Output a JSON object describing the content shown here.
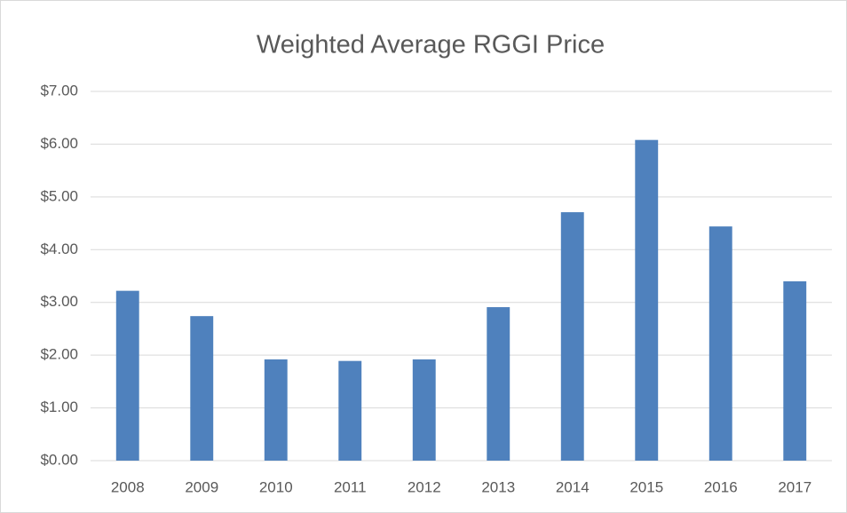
{
  "chart_data": {
    "type": "bar",
    "title": "Weighted Average RGGI Price",
    "categories": [
      "2008",
      "2009",
      "2010",
      "2011",
      "2012",
      "2013",
      "2014",
      "2015",
      "2016",
      "2017"
    ],
    "values": [
      3.22,
      2.74,
      1.92,
      1.89,
      1.92,
      2.91,
      4.71,
      6.08,
      4.44,
      3.4
    ],
    "color": "#4f81bd",
    "ylim": [
      0,
      7
    ],
    "yticks": [
      {
        "value": 0,
        "label": "$0.00"
      },
      {
        "value": 1,
        "label": "$1.00"
      },
      {
        "value": 2,
        "label": "$2.00"
      },
      {
        "value": 3,
        "label": "$3.00"
      },
      {
        "value": 4,
        "label": "$4.00"
      },
      {
        "value": 5,
        "label": "$5.00"
      },
      {
        "value": 6,
        "label": "$6.00"
      },
      {
        "value": 7,
        "label": "$7.00"
      }
    ],
    "grid": true
  }
}
